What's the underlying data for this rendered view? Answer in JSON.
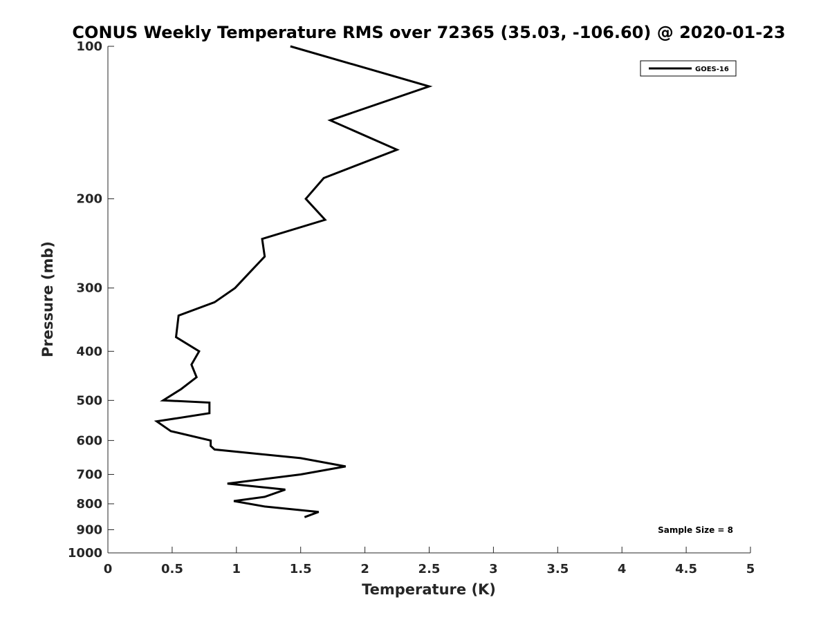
{
  "chart_data": {
    "type": "line",
    "title": "CONUS Weekly Temperature RMS over 72365 (35.03, -106.60) @ 2020-01-23",
    "xlabel": "Temperature (K)",
    "ylabel": "Pressure (mb)",
    "xlim": [
      0,
      5
    ],
    "ylim": [
      100,
      1000
    ],
    "y_scale": "log",
    "y_reversed": true,
    "x_ticks": [
      0,
      0.5,
      1,
      1.5,
      2,
      2.5,
      3,
      3.5,
      4,
      4.5,
      5
    ],
    "x_tick_labels": [
      "0",
      "0.5",
      "1",
      "1.5",
      "2",
      "2.5",
      "3",
      "3.5",
      "4",
      "4.5",
      "5"
    ],
    "y_ticks": [
      100,
      200,
      300,
      400,
      500,
      600,
      700,
      800,
      900,
      1000
    ],
    "y_tick_labels": [
      "100",
      "200",
      "300",
      "400",
      "500",
      "600",
      "700",
      "800",
      "900",
      "1000"
    ],
    "grid": false,
    "legend_position": "top-right",
    "series": [
      {
        "name": "GOES-16",
        "color": "#000000",
        "x": [
          1.42,
          2.5,
          1.73,
          2.25,
          1.68,
          1.54,
          1.69,
          1.2,
          1.22,
          1.1,
          0.99,
          0.83,
          0.55,
          0.53,
          0.71,
          0.65,
          0.69,
          0.57,
          0.43,
          0.79,
          0.79,
          0.38,
          0.49,
          0.8,
          0.8,
          0.83,
          1.5,
          1.85,
          1.5,
          0.93,
          1.38,
          1.22,
          0.98,
          1.22,
          1.64,
          1.53
        ],
        "y": [
          100,
          120,
          140,
          160,
          182,
          200,
          220,
          240,
          260,
          280,
          300,
          320,
          340,
          375,
          400,
          425,
          450,
          475,
          500,
          505,
          530,
          550,
          575,
          600,
          615,
          625,
          650,
          675,
          700,
          730,
          750,
          775,
          790,
          810,
          830,
          850
        ]
      }
    ],
    "annotation": "Sample Size = 8"
  }
}
